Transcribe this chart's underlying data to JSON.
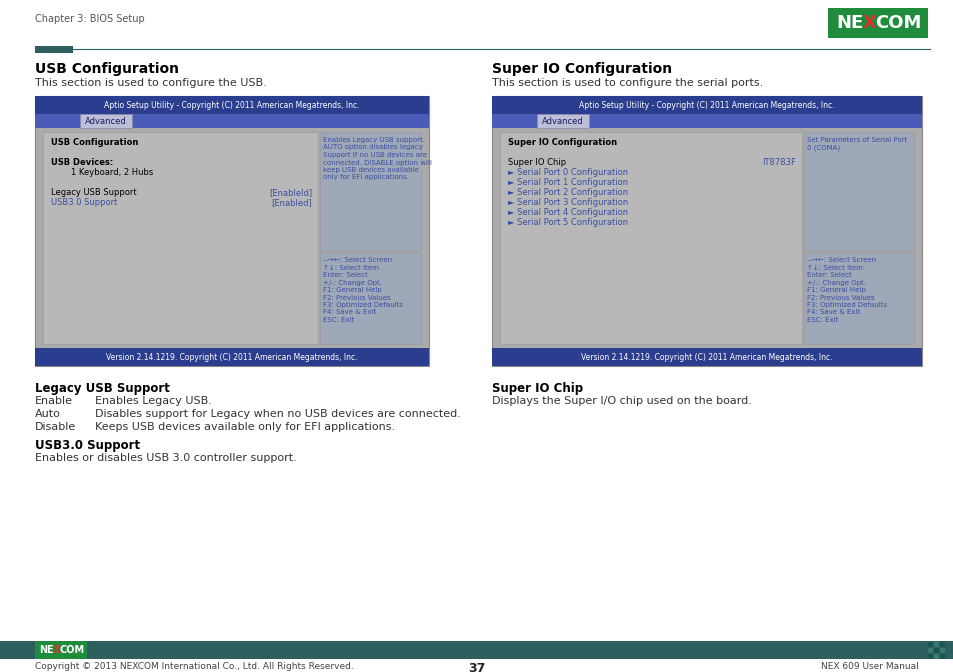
{
  "bg_color": "#ffffff",
  "header_text": "Chapter 3: BIOS Setup",
  "header_bar_color": "#2d5f5f",
  "left_title": "USB Configuration",
  "left_subtitle": "This section is used to configure the USB.",
  "right_title": "Super IO Configuration",
  "right_subtitle": "This section is used to configure the serial ports.",
  "bios_header": "Aptio Setup Utility - Copyright (C) 2011 American Megatrends, Inc.",
  "bios_tab": "Advanced",
  "bios_version": "Version 2.14.1219. Copyright (C) 2011 American Megatrends, Inc.",
  "bios_header_color": "#2b3d8f",
  "bios_tab_bar_color": "#4a5cb8",
  "bios_tab_btn_color": "#bbbfd8",
  "bios_tab_btn_border": "#8888aa",
  "bios_content_bg": "#adadad",
  "bios_left_pane_bg": "#b8b8b8",
  "bios_right_pane_bg": "#9fa8b8",
  "bios_version_color": "#2b3d8f",
  "usb_left_lines": [
    {
      "text": "USB Configuration",
      "bold": true,
      "color": "#000000",
      "indent": 0
    },
    {
      "text": "",
      "bold": false,
      "color": "#000000",
      "indent": 0
    },
    {
      "text": "USB Devices:",
      "bold": true,
      "color": "#000000",
      "indent": 0
    },
    {
      "text": "1 Keyboard, 2 Hubs",
      "bold": false,
      "color": "#000000",
      "indent": 1
    },
    {
      "text": "",
      "bold": false,
      "color": "#000000",
      "indent": 0
    },
    {
      "text": "Legacy USB Support",
      "bold": false,
      "color": "#000000",
      "indent": 0,
      "right": "[Enableld]"
    },
    {
      "text": "USB3.0 Support",
      "bold": false,
      "color": "#3a4fa0",
      "indent": 0,
      "right": "[Enabled]"
    }
  ],
  "usb_right_top": [
    "Enables Legacy USB support.",
    "AUTO option disables legacy",
    "Support if no USB devices are",
    "connected. DISABLE option will",
    "keep USB devices available",
    "only for EFI applications."
  ],
  "usb_right_bottom": [
    "--→←: Select Screen",
    "↑↓: Select Item",
    "Enter: Select",
    "+/-: Change Opt.",
    "F1: General Help",
    "F2: Previous Values",
    "F3: Optimized Defaults",
    "F4: Save & Exit",
    "ESC: Exit"
  ],
  "super_left_lines": [
    {
      "text": "Super IO Configuration",
      "bold": true,
      "color": "#000000",
      "indent": 0
    },
    {
      "text": "",
      "bold": false,
      "color": "#000000",
      "indent": 0
    },
    {
      "text": "Super IO Chip",
      "bold": false,
      "color": "#000000",
      "indent": 0,
      "right": "IT8783F"
    },
    {
      "text": "► Serial Port 0 Configuration",
      "bold": false,
      "color": "#3a4fa0",
      "indent": 0
    },
    {
      "text": "► Serial Port 1 Configuration",
      "bold": false,
      "color": "#3a4fa0",
      "indent": 0
    },
    {
      "text": "► Serial Port 2 Configuration",
      "bold": false,
      "color": "#3a4fa0",
      "indent": 0
    },
    {
      "text": "► Serial Port 3 Configuration",
      "bold": false,
      "color": "#3a4fa0",
      "indent": 0
    },
    {
      "text": "► Serial Port 4 Configuration",
      "bold": false,
      "color": "#3a4fa0",
      "indent": 0
    },
    {
      "text": "► Serial Port 5 Configuration",
      "bold": false,
      "color": "#3a4fa0",
      "indent": 0
    }
  ],
  "super_right_top": [
    "Set Parameters of Serial Port",
    "0 (COMA)"
  ],
  "super_right_bottom": [
    "--→←: Select Screen",
    "↑↓: Select Item",
    "Enter: Select",
    "+/-: Change Opt.",
    "F1: General Help",
    "F2: Previous Values",
    "F3: Optimized Defaults",
    "F4: Save & Exit",
    "ESC: Exit"
  ],
  "bottom_left_title": "Legacy USB Support",
  "bottom_left_lines": [
    {
      "label": "Enable",
      "text": "Enables Legacy USB."
    },
    {
      "label": "Auto",
      "text": "Disables support for Legacy when no USB devices are connected."
    },
    {
      "label": "Disable",
      "text": "Keeps USB devices available only for EFI applications."
    }
  ],
  "bottom_left2_title": "USB3.0 Support",
  "bottom_left2_text": "Enables or disables USB 3.0 controller support.",
  "bottom_right_title": "Super IO Chip",
  "bottom_right_text": "Displays the Super I/O chip used on the board.",
  "footer_bar_color": "#2d5f5f",
  "footer_text_left": "Copyright © 2013 NEXCOM International Co., Ltd. All Rights Reserved.",
  "footer_text_center": "37",
  "footer_text_right": "NEX 609 User Manual"
}
